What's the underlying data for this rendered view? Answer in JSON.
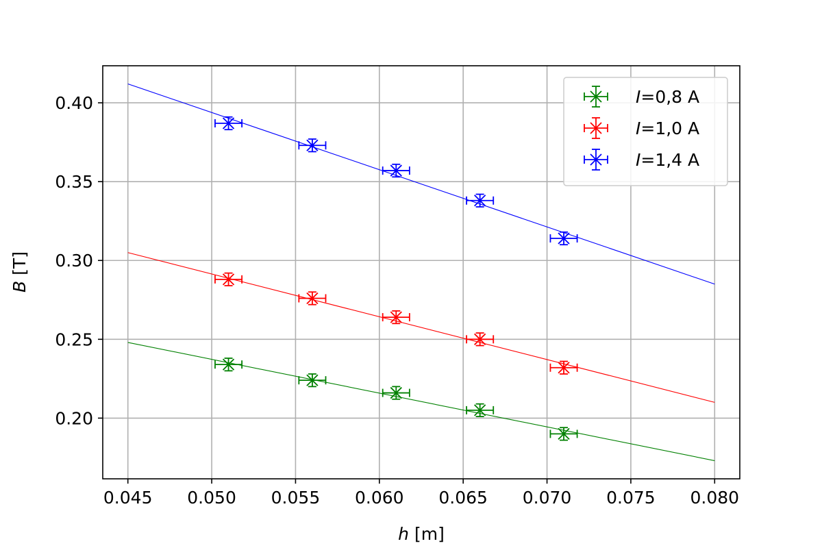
{
  "chart_data": {
    "type": "scatter",
    "xlabel_var": "h",
    "xlabel_unit": "[m]",
    "ylabel_var": "B",
    "ylabel_unit": "[T]",
    "xlim": [
      0.0435,
      0.0815
    ],
    "ylim": [
      0.1615,
      0.4235
    ],
    "xticks": [
      {
        "value": 0.045,
        "label": "0.045"
      },
      {
        "value": 0.05,
        "label": "0.050"
      },
      {
        "value": 0.055,
        "label": "0.055"
      },
      {
        "value": 0.06,
        "label": "0.060"
      },
      {
        "value": 0.065,
        "label": "0.065"
      },
      {
        "value": 0.07,
        "label": "0.070"
      },
      {
        "value": 0.075,
        "label": "0.075"
      },
      {
        "value": 0.08,
        "label": "0.080"
      }
    ],
    "yticks": [
      {
        "value": 0.2,
        "label": "0.20"
      },
      {
        "value": 0.25,
        "label": "0.25"
      },
      {
        "value": 0.3,
        "label": "0.30"
      },
      {
        "value": 0.35,
        "label": "0.35"
      },
      {
        "value": 0.4,
        "label": "0.40"
      }
    ],
    "grid": true,
    "legend_position": "top-right",
    "x_error": 0.0008,
    "y_error": 0.004,
    "series": [
      {
        "id": "i08",
        "legend_var": "I",
        "legend_value": "=0,8 A",
        "color": "#008000",
        "x": [
          0.051,
          0.056,
          0.061,
          0.066,
          0.071
        ],
        "y": [
          0.234,
          0.224,
          0.216,
          0.205,
          0.19
        ],
        "fit": {
          "x": [
            0.045,
            0.08
          ],
          "y": [
            0.248,
            0.173
          ]
        }
      },
      {
        "id": "i10",
        "legend_var": "I",
        "legend_value": "=1,0 A",
        "color": "#ff0000",
        "x": [
          0.051,
          0.056,
          0.061,
          0.066,
          0.071
        ],
        "y": [
          0.288,
          0.276,
          0.264,
          0.25,
          0.232
        ],
        "fit": {
          "x": [
            0.045,
            0.08
          ],
          "y": [
            0.305,
            0.21
          ]
        }
      },
      {
        "id": "i14",
        "legend_var": "I",
        "legend_value": "=1,4 A",
        "color": "#0000ff",
        "x": [
          0.051,
          0.056,
          0.061,
          0.066,
          0.071
        ],
        "y": [
          0.387,
          0.373,
          0.357,
          0.338,
          0.314
        ],
        "fit": {
          "x": [
            0.045,
            0.08
          ],
          "y": [
            0.412,
            0.285
          ]
        }
      }
    ]
  }
}
